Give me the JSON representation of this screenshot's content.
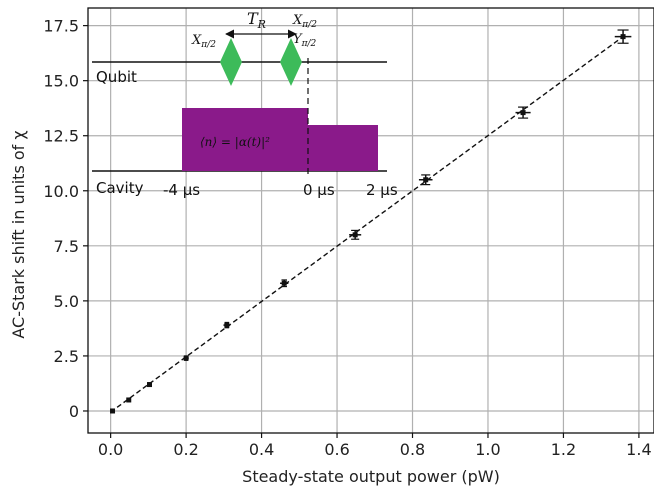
{
  "chart_data": {
    "type": "scatter",
    "xlabel": "Steady-state output power (pW)",
    "ylabel": "AC-Stark shift in units of χ",
    "xlim": [
      -0.06,
      1.44
    ],
    "ylim": [
      -1.0,
      18.3
    ],
    "x_ticks": [
      {
        "value": 0.0,
        "label": "0.0"
      },
      {
        "value": 0.2,
        "label": "0.2"
      },
      {
        "value": 0.4,
        "label": "0.4"
      },
      {
        "value": 0.6,
        "label": "0.6"
      },
      {
        "value": 0.8,
        "label": "0.8"
      },
      {
        "value": 1.0,
        "label": "1.0"
      },
      {
        "value": 1.2,
        "label": "1.2"
      },
      {
        "value": 1.4,
        "label": "1.4"
      }
    ],
    "y_ticks": [
      {
        "value": 0.0,
        "label": "0"
      },
      {
        "value": 2.5,
        "label": "2.5"
      },
      {
        "value": 5.0,
        "label": "5.0"
      },
      {
        "value": 7.5,
        "label": "7.5"
      },
      {
        "value": 10.0,
        "label": "10.0"
      },
      {
        "value": 12.5,
        "label": "12.5"
      },
      {
        "value": 15.0,
        "label": "15.0"
      },
      {
        "value": 17.5,
        "label": "17.5"
      }
    ],
    "grid": true,
    "series": [
      {
        "points": [
          {
            "x": 0.005,
            "y": 0.0,
            "xerr": 0.005,
            "yerr": 0.05
          },
          {
            "x": 0.048,
            "y": 0.5,
            "xerr": 0.005,
            "yerr": 0.07
          },
          {
            "x": 0.103,
            "y": 1.2,
            "xerr": 0.006,
            "yerr": 0.08
          },
          {
            "x": 0.2,
            "y": 2.4,
            "xerr": 0.007,
            "yerr": 0.1
          },
          {
            "x": 0.308,
            "y": 3.9,
            "xerr": 0.009,
            "yerr": 0.12
          },
          {
            "x": 0.46,
            "y": 5.8,
            "xerr": 0.011,
            "yerr": 0.15
          },
          {
            "x": 0.648,
            "y": 8.0,
            "xerr": 0.016,
            "yerr": 0.2
          },
          {
            "x": 0.835,
            "y": 10.5,
            "xerr": 0.018,
            "yerr": 0.22
          },
          {
            "x": 1.093,
            "y": 13.55,
            "xerr": 0.02,
            "yerr": 0.25
          },
          {
            "x": 1.358,
            "y": 17.0,
            "xerr": 0.022,
            "yerr": 0.3
          }
        ],
        "color": "#111111"
      }
    ],
    "fit_line": {
      "x": [
        0.0,
        1.358
      ],
      "y": [
        -0.05,
        17.0
      ],
      "style": "dashed",
      "color": "#111111"
    }
  },
  "inset": {
    "qubit_label": "Qubit",
    "cavity_label": "Cavity",
    "time_labels": [
      "-4 μs",
      "0 μs",
      "2 μs"
    ],
    "pulse_label_left_main": "X",
    "pulse_label_left_sub": "π/2",
    "pulse_label_right_top_main": "X",
    "pulse_label_right_top_sub": "π/2",
    "pulse_label_right_bottom_main": "Y",
    "pulse_label_right_bottom_sub": "π/2",
    "ramsey_label_main": "T",
    "ramsey_label_sub": "R",
    "photon_label": "⟨n⟩ = |α(t)|²",
    "pulse_color": "#3dbb5a",
    "drive_color": "#8a1a8a"
  }
}
